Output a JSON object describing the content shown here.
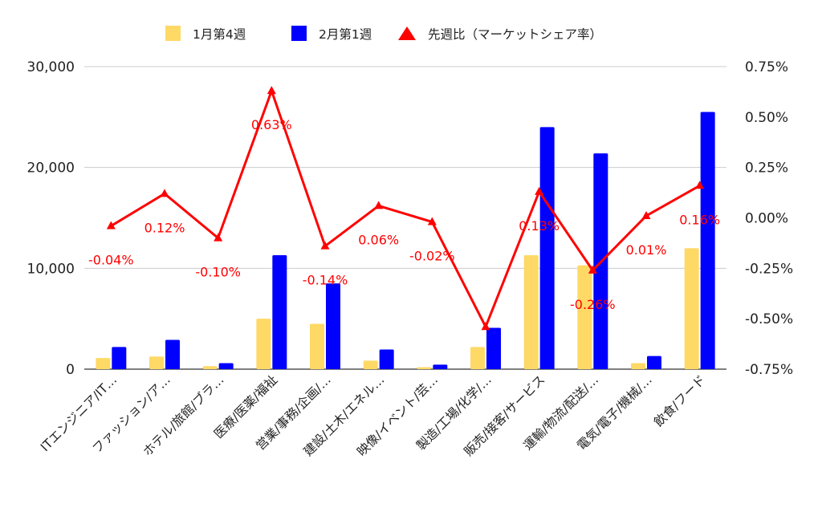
{
  "chart_data": {
    "type": "bar",
    "categories": [
      "ITエンジニア/IT…",
      "ファッション/ア…",
      "ホテル/旅館/ブラ…",
      "医療/医薬/福祉",
      "営業/事務/企画/…",
      "建設/土木/エネル…",
      "映像/イベント/芸…",
      "製造/工場/化学/…",
      "販売/接客/サービス",
      "運輸/物流/配送/…",
      "電気/電子/機械/…",
      "飲食/フード"
    ],
    "series": [
      {
        "name": "1月第4週",
        "type": "bar",
        "axis": "left",
        "color": "#ffd966",
        "values": [
          1100,
          1250,
          300,
          5000,
          4500,
          850,
          200,
          2200,
          11300,
          10300,
          600,
          12000
        ]
      },
      {
        "name": "2月第1週",
        "type": "bar",
        "axis": "left",
        "color": "#0000ff",
        "values": [
          2200,
          2900,
          600,
          11300,
          8500,
          1950,
          450,
          4100,
          24000,
          21400,
          1300,
          25500
        ]
      },
      {
        "name": "先週比（マーケットシェア率）",
        "type": "line",
        "axis": "right",
        "color": "#ff0000",
        "marker": "triangle",
        "values": [
          -0.04,
          0.12,
          -0.1,
          0.63,
          -0.14,
          0.06,
          -0.02,
          -0.54,
          0.13,
          -0.26,
          0.01,
          0.16
        ],
        "labels": [
          "-0.04%",
          "0.12%",
          "-0.10%",
          "0.63%",
          "-0.14%",
          "0.06%",
          "-0.02%",
          "",
          "0.13%",
          "-0.26%",
          "0.01%",
          "0.16%"
        ]
      }
    ],
    "y_left": {
      "ylim": [
        0,
        30000
      ],
      "ticks": [
        "0",
        "10,000",
        "20,000",
        "30,000"
      ]
    },
    "y_right": {
      "ylim": [
        -0.75,
        0.75
      ],
      "ticks": [
        "-0.75%",
        "-0.50%",
        "-0.25%",
        "0.00%",
        "0.25%",
        "0.50%",
        "0.75%"
      ]
    },
    "title": "",
    "xlabel": "",
    "ylabel": "",
    "grid": true,
    "legend_position": "top-center"
  }
}
